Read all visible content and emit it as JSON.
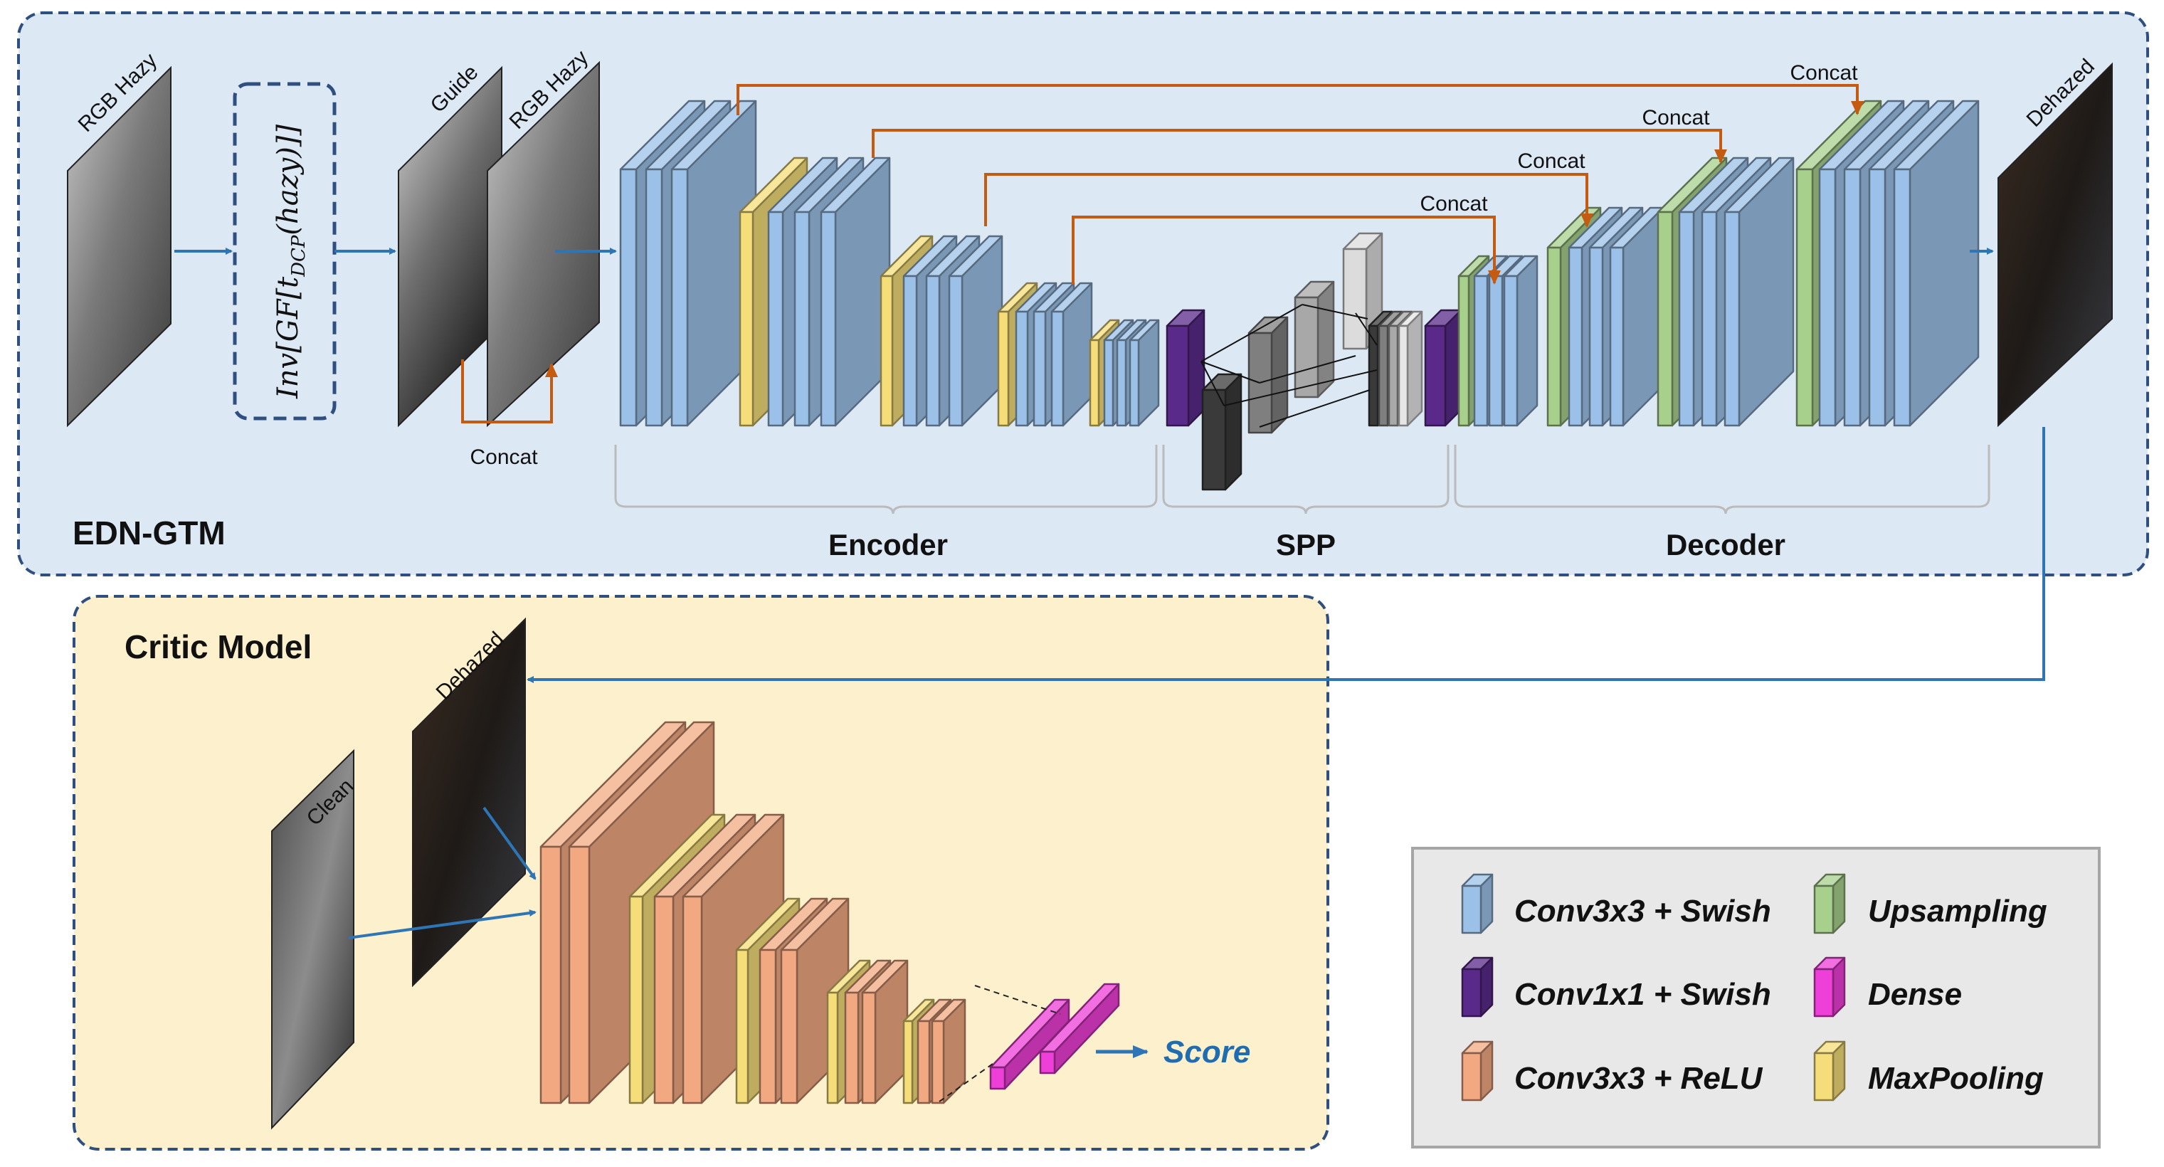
{
  "colors": {
    "edn_panel_fill": "#dde8f5",
    "critic_panel_fill": "#fdf0cd",
    "panel_border": "#2e4f80",
    "legend_fill": "#e8e8e8",
    "conv_swish": "#9cc1e8",
    "conv1x1_swish": "#5a2a8a",
    "conv_relu": "#f2a982",
    "upsampling": "#a8d08d",
    "dense": "#ee3fd8",
    "maxpooling": "#f5de7a",
    "arrow_blue": "#2e75b6",
    "arrow_orange": "#c55a11"
  },
  "edn_gtm": {
    "title": "EDN-GTM",
    "input_label": "RGB Hazy",
    "formula": {
      "prefix": "Inv[GF[t",
      "sub": "DCP",
      "suffix": "(hazy)]]"
    },
    "guide_label": "Guide",
    "hazy_label": "RGB Hazy",
    "concat_input": "Concat",
    "output_label": "Dehazed",
    "skip_labels": [
      "Concat",
      "Concat",
      "Concat",
      "Concat"
    ],
    "sections": {
      "encoder": "Encoder",
      "spp": "SPP",
      "decoder": "Decoder"
    }
  },
  "critic": {
    "title": "Critic Model",
    "clean_label": "Clean",
    "dehazed_label": "Dehazed",
    "score_label": "Score"
  },
  "legend": {
    "items": [
      {
        "label": "Conv3x3 + Swish",
        "swatch": "conv-swish"
      },
      {
        "label": "Upsampling",
        "swatch": "upsampling"
      },
      {
        "label": "Conv1x1 + Swish",
        "swatch": "conv1x1-swish"
      },
      {
        "label": "Dense",
        "swatch": "dense"
      },
      {
        "label": "Conv3x3 + ReLU",
        "swatch": "conv-relu"
      },
      {
        "label": "MaxPooling",
        "swatch": "maxpooling"
      }
    ]
  }
}
